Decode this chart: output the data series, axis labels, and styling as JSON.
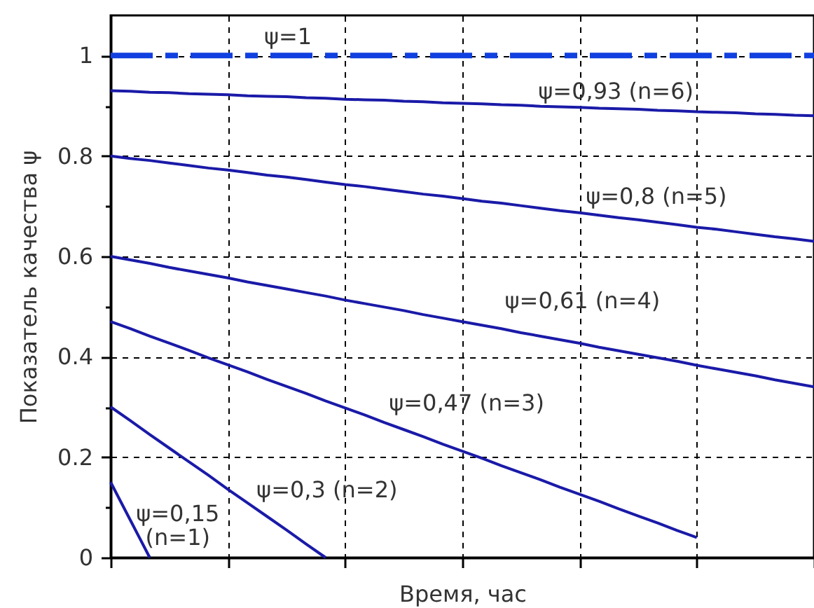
{
  "chart_data": {
    "type": "line",
    "xlabel": "Время, час",
    "ylabel": "Показатель качества ψ",
    "categories": [
      null,
      null,
      null,
      null,
      null,
      null,
      null,
      null,
      null,
      null,
      null,
      null,
      null,
      null,
      null,
      null,
      null,
      null,
      null,
      null,
      null,
      null,
      null,
      null,
      null,
      null,
      null,
      null,
      null,
      null,
      null,
      null,
      null,
      null,
      null,
      null,
      null
    ],
    "ylim": [
      0,
      1.08
    ],
    "yticks": [
      0,
      {
        "value": 0.1,
        "label": null
      },
      0.2,
      {
        "value": 0.3,
        "label": null
      },
      0.4,
      {
        "value": 0.5,
        "label": null
      },
      0.6,
      {
        "value": 0.7,
        "label": null
      },
      0.8,
      {
        "value": 0.9,
        "label": null
      },
      1
    ],
    "tick_labels": "y",
    "grid": true,
    "line_style": "solid",
    "series": [
      {
        "name": "ψ=1",
        "color": "#1040e0",
        "line_style": "dashed",
        "values": [
          1,
          1,
          1,
          1,
          1,
          1,
          1,
          1,
          1,
          1,
          1,
          1,
          1,
          1,
          1,
          1,
          1,
          1,
          1,
          1,
          1,
          1,
          1,
          1,
          1,
          1,
          1,
          1,
          1,
          1,
          1,
          1,
          1,
          1,
          1,
          1,
          1
        ]
      },
      {
        "name": "ψ=0,93 (n=6)",
        "color": "#1a1aa8",
        "values": [
          0.93,
          0.929,
          0.927,
          0.926,
          0.924,
          0.923,
          0.922,
          0.92,
          0.919,
          0.918,
          0.916,
          0.915,
          0.913,
          0.912,
          0.911,
          0.909,
          0.908,
          0.906,
          0.905,
          0.904,
          0.902,
          0.901,
          0.899,
          0.898,
          0.897,
          0.895,
          0.894,
          0.893,
          0.891,
          0.89,
          0.888,
          0.887,
          0.886,
          0.884,
          0.883,
          0.881,
          0.88
        ]
      },
      {
        "name": "ψ=0,8 (n=5)",
        "color": "#1a1aa8",
        "values": [
          0.8,
          0.795,
          0.791,
          0.786,
          0.781,
          0.776,
          0.772,
          0.767,
          0.762,
          0.758,
          0.753,
          0.748,
          0.743,
          0.739,
          0.734,
          0.729,
          0.724,
          0.72,
          0.715,
          0.71,
          0.706,
          0.701,
          0.696,
          0.691,
          0.687,
          0.682,
          0.677,
          0.673,
          0.668,
          0.663,
          0.658,
          0.654,
          0.649,
          0.644,
          0.639,
          0.635,
          0.63
        ]
      },
      {
        "name": "ψ=0,61 (n=4)",
        "color": "#1a1aa8",
        "values": [
          0.6,
          0.593,
          0.586,
          0.578,
          0.571,
          0.564,
          0.557,
          0.549,
          0.542,
          0.535,
          0.528,
          0.521,
          0.513,
          0.506,
          0.499,
          0.492,
          0.484,
          0.477,
          0.47,
          0.463,
          0.456,
          0.448,
          0.441,
          0.434,
          0.427,
          0.419,
          0.412,
          0.405,
          0.398,
          0.391,
          0.383,
          0.376,
          0.369,
          0.362,
          0.354,
          0.347,
          0.34
        ]
      },
      {
        "name": "ψ=0,47 (n=3)",
        "color": "#1a1aa8",
        "values": [
          0.47,
          0.456,
          0.441,
          0.427,
          0.413,
          0.398,
          0.384,
          0.37,
          0.355,
          0.341,
          0.327,
          0.312,
          0.298,
          0.284,
          0.269,
          0.255,
          0.241,
          0.226,
          0.212,
          0.198,
          0.183,
          0.169,
          0.155,
          0.14,
          0.126,
          0.112,
          0.097,
          0.083,
          0.069,
          0.054,
          0.04,
          null,
          null,
          null,
          null,
          null,
          null
        ]
      },
      {
        "name": "ψ=0,3 (n=2)",
        "color": "#1a1aa8",
        "values": [
          0.3,
          0.273,
          0.245,
          0.218,
          0.191,
          0.164,
          0.136,
          0.109,
          0.082,
          0.055,
          0.027,
          0,
          null,
          null,
          null,
          null,
          null,
          null,
          null,
          null,
          null,
          null,
          null,
          null,
          null,
          null,
          null,
          null,
          null,
          null,
          null,
          null,
          null,
          null,
          null,
          null,
          null
        ]
      },
      {
        "name": "ψ=0,15 (n=1)",
        "color": "#1a1aa8",
        "values": [
          0.15,
          0.075,
          0,
          null,
          null,
          null,
          null,
          null,
          null,
          null,
          null,
          null,
          null,
          null,
          null,
          null,
          null,
          null,
          null,
          null,
          null,
          null,
          null,
          null,
          null,
          null,
          null,
          null,
          null,
          null,
          null,
          null,
          null,
          null,
          null,
          null,
          null
        ]
      }
    ]
  }
}
